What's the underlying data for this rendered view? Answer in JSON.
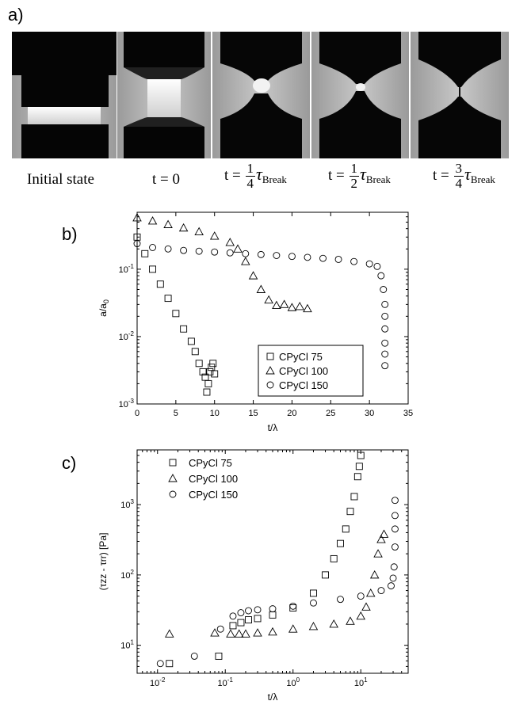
{
  "panel_a": {
    "label": "a)",
    "frames": [
      {
        "caption": "Initial state"
      },
      {
        "prefix": "t = ",
        "value": "0"
      },
      {
        "prefix": "t = ",
        "num": "1",
        "den": "4",
        "tau": "τ",
        "sub": "Break"
      },
      {
        "prefix": "t = ",
        "num": "1",
        "den": "2",
        "tau": "τ",
        "sub": "Break"
      },
      {
        "prefix": "t = ",
        "num": "3",
        "den": "4",
        "tau": "τ",
        "sub": "Break"
      }
    ]
  },
  "chart_data": [
    {
      "panel_label": "b)",
      "type": "scatter",
      "xlabel": "t/λ",
      "ylabel": "a/a0",
      "xlim": [
        0,
        35
      ],
      "ylim": [
        0.001,
        0.7
      ],
      "yscale": "log",
      "xticks": [
        0,
        5,
        10,
        15,
        20,
        25,
        30,
        35
      ],
      "yticks": [
        {
          "base": "10",
          "exp": "-3",
          "value": 0.001
        },
        {
          "base": "10",
          "exp": "-2",
          "value": 0.01
        },
        {
          "base": "10",
          "exp": "-1",
          "value": 0.1
        }
      ],
      "legend_position": "bottom-right",
      "series": [
        {
          "name": "CPyCl 75",
          "marker": "square",
          "x": [
            0,
            1,
            2,
            3,
            4,
            5,
            6,
            7,
            7.5,
            8,
            8.5,
            8.8,
            9.0,
            9.2,
            9.4,
            9.6,
            9.8,
            10.0
          ],
          "y": [
            0.3,
            0.17,
            0.1,
            0.06,
            0.037,
            0.022,
            0.013,
            0.0085,
            0.006,
            0.004,
            0.003,
            0.0025,
            0.0015,
            0.002,
            0.003,
            0.0035,
            0.004,
            0.0028
          ]
        },
        {
          "name": "CPyCl 100",
          "marker": "triangle",
          "x": [
            0,
            2,
            4,
            6,
            8,
            10,
            12,
            13,
            14,
            15,
            16,
            17,
            18,
            19,
            20,
            21,
            22
          ],
          "y": [
            0.58,
            0.52,
            0.46,
            0.41,
            0.36,
            0.31,
            0.25,
            0.2,
            0.13,
            0.08,
            0.05,
            0.035,
            0.029,
            0.03,
            0.027,
            0.028,
            0.026
          ]
        },
        {
          "name": "CPyCl 150",
          "marker": "circle",
          "x": [
            0,
            2,
            4,
            6,
            8,
            10,
            12,
            14,
            16,
            18,
            20,
            22,
            24,
            26,
            28,
            30,
            31,
            31.5,
            31.8,
            32,
            32,
            32,
            32,
            32,
            32
          ],
          "y": [
            0.24,
            0.21,
            0.2,
            0.19,
            0.185,
            0.18,
            0.175,
            0.17,
            0.165,
            0.16,
            0.155,
            0.15,
            0.145,
            0.14,
            0.13,
            0.12,
            0.11,
            0.08,
            0.05,
            0.03,
            0.02,
            0.013,
            0.008,
            0.0055,
            0.0037
          ]
        }
      ]
    },
    {
      "panel_label": "c)",
      "type": "scatter",
      "xlabel": "t/λ",
      "ylabel": "(τzz - τrr) [Pa]",
      "xlim": [
        0.005,
        50
      ],
      "ylim": [
        4,
        6000
      ],
      "xscale": "log",
      "yscale": "log",
      "xticks": [
        {
          "base": "10",
          "exp": "-2",
          "value": 0.01
        },
        {
          "base": "10",
          "exp": "-1",
          "value": 0.1
        },
        {
          "base": "10",
          "exp": "0",
          "value": 1
        },
        {
          "base": "10",
          "exp": "1",
          "value": 10
        }
      ],
      "yticks": [
        {
          "base": "10",
          "exp": "1",
          "value": 10
        },
        {
          "base": "10",
          "exp": "2",
          "value": 100
        },
        {
          "base": "10",
          "exp": "3",
          "value": 1000
        }
      ],
      "legend_position": "top-left",
      "series": [
        {
          "name": "CPyCl 75",
          "marker": "square",
          "x": [
            0.015,
            0.08,
            0.13,
            0.17,
            0.22,
            0.3,
            0.5,
            1,
            2,
            3,
            4,
            5,
            6,
            7,
            8,
            9,
            9.5,
            10
          ],
          "y": [
            5.5,
            7,
            19,
            21,
            23,
            24,
            27,
            34,
            55,
            100,
            170,
            280,
            450,
            800,
            1300,
            2500,
            3500,
            5000
          ]
        },
        {
          "name": "CPyCl 100",
          "marker": "triangle",
          "x": [
            0.015,
            0.07,
            0.12,
            0.16,
            0.2,
            0.3,
            0.5,
            1,
            2,
            4,
            7,
            10,
            12,
            14,
            16,
            18,
            20,
            22
          ],
          "y": [
            14.5,
            15,
            14.5,
            14.5,
            14.5,
            15,
            15.5,
            17,
            18.5,
            20,
            22,
            26,
            35,
            55,
            100,
            200,
            320,
            380
          ]
        },
        {
          "name": "CPyCl 150",
          "marker": "circle",
          "x": [
            0.011,
            0.035,
            0.085,
            0.13,
            0.17,
            0.22,
            0.3,
            0.5,
            1,
            2,
            5,
            10,
            20,
            28,
            30,
            31,
            32,
            32,
            32,
            32
          ],
          "y": [
            5.5,
            7,
            17,
            26,
            29,
            31,
            32,
            33,
            36,
            40,
            45,
            50,
            60,
            70,
            90,
            130,
            250,
            450,
            700,
            1150
          ]
        }
      ]
    }
  ]
}
